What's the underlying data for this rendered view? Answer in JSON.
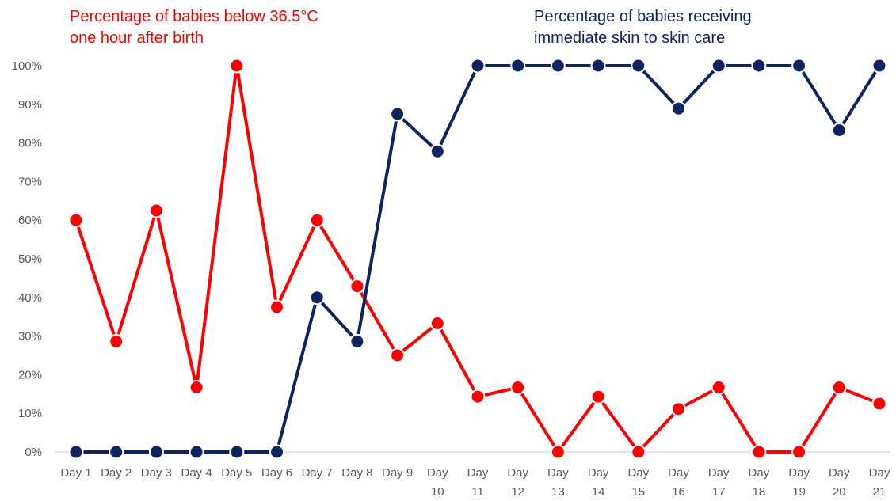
{
  "chart_data": {
    "type": "line",
    "categories": [
      [
        "Day 1"
      ],
      [
        "Day 2"
      ],
      [
        "Day 3"
      ],
      [
        "Day 4"
      ],
      [
        "Day 5"
      ],
      [
        "Day 6"
      ],
      [
        "Day 7"
      ],
      [
        "Day 8"
      ],
      [
        "Day 9"
      ],
      [
        "Day",
        "10"
      ],
      [
        "Day",
        "11"
      ],
      [
        "Day",
        "12"
      ],
      [
        "Day",
        "13"
      ],
      [
        "Day",
        "14"
      ],
      [
        "Day",
        "15"
      ],
      [
        "Day",
        "16"
      ],
      [
        "Day",
        "17"
      ],
      [
        "Day",
        "18"
      ],
      [
        "Day",
        "19"
      ],
      [
        "Day",
        "20"
      ],
      [
        "Day",
        "21"
      ]
    ],
    "ylim": [
      0,
      100
    ],
    "yticks": [
      "0%",
      "10%",
      "20%",
      "30%",
      "40%",
      "50%",
      "60%",
      "70%",
      "80%",
      "90%",
      "100%"
    ],
    "grid": false,
    "series": [
      {
        "name_lines": [
          "Percentage of babies below 36.5°C",
          "one hour after birth"
        ],
        "color": "#ff0000",
        "values": [
          60,
          28.6,
          62.5,
          16.7,
          100,
          37.5,
          60,
          42.9,
          25,
          33.3,
          14.3,
          16.7,
          0,
          14.3,
          0,
          11.1,
          16.7,
          0,
          0,
          16.7,
          12.5
        ]
      },
      {
        "name_lines": [
          "Percentage of babies receiving",
          "immediate skin to skin care"
        ],
        "color": "#0d2461",
        "values": [
          0,
          0,
          0,
          0,
          0,
          0,
          40,
          28.6,
          87.5,
          77.8,
          100,
          100,
          100,
          100,
          100,
          88.9,
          100,
          100,
          100,
          83.3,
          100
        ]
      }
    ]
  }
}
